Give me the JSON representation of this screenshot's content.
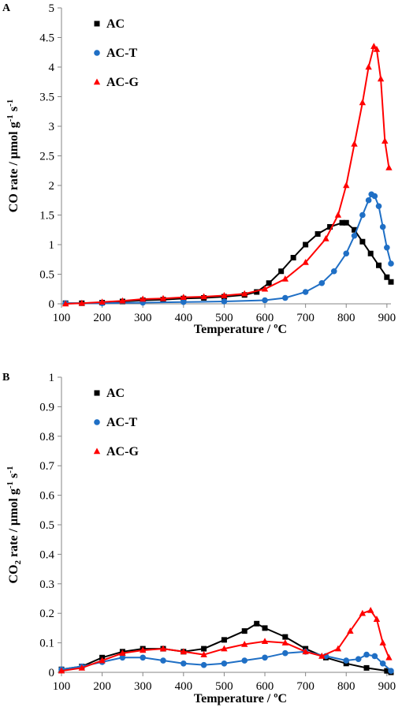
{
  "colors": {
    "AC": "#000000",
    "AC-T": "#1f6fc5",
    "AC-G": "#ff0000"
  },
  "chart_data": [
    {
      "panel": "A",
      "type": "line",
      "ylabel_main": "CO rate / μmol g",
      "ylabel_sup1": "-1",
      "ylabel_mid": " s",
      "ylabel_sup2": "-1",
      "xlabel": "Temperature / ºC",
      "xlim": [
        100,
        910
      ],
      "ylim": [
        0,
        5
      ],
      "xticks": [
        "100",
        "200",
        "300",
        "400",
        "500",
        "600",
        "700",
        "800",
        "900"
      ],
      "yticks": [
        "0",
        "0.5",
        "1",
        "1.5",
        "2",
        "2.5",
        "3",
        "3.5",
        "4",
        "4.5",
        "5"
      ],
      "legend_position": "top-left",
      "grid": false,
      "series": [
        {
          "name": "AC",
          "marker": "square",
          "points": [
            [
              110,
              0.01
            ],
            [
              150,
              0.01
            ],
            [
              200,
              0.02
            ],
            [
              250,
              0.04
            ],
            [
              300,
              0.06
            ],
            [
              350,
              0.07
            ],
            [
              400,
              0.09
            ],
            [
              450,
              0.1
            ],
            [
              500,
              0.12
            ],
            [
              550,
              0.15
            ],
            [
              580,
              0.2
            ],
            [
              610,
              0.35
            ],
            [
              640,
              0.55
            ],
            [
              670,
              0.78
            ],
            [
              700,
              1.0
            ],
            [
              730,
              1.18
            ],
            [
              760,
              1.3
            ],
            [
              790,
              1.37
            ],
            [
              800,
              1.37
            ],
            [
              820,
              1.25
            ],
            [
              840,
              1.05
            ],
            [
              860,
              0.85
            ],
            [
              880,
              0.65
            ],
            [
              900,
              0.45
            ],
            [
              910,
              0.37
            ]
          ]
        },
        {
          "name": "AC-T",
          "marker": "circle",
          "points": [
            [
              110,
              0.01
            ],
            [
              200,
              0.01
            ],
            [
              300,
              0.02
            ],
            [
              400,
              0.03
            ],
            [
              500,
              0.04
            ],
            [
              600,
              0.06
            ],
            [
              650,
              0.1
            ],
            [
              700,
              0.2
            ],
            [
              740,
              0.35
            ],
            [
              770,
              0.55
            ],
            [
              800,
              0.85
            ],
            [
              820,
              1.15
            ],
            [
              840,
              1.5
            ],
            [
              855,
              1.75
            ],
            [
              862,
              1.85
            ],
            [
              870,
              1.82
            ],
            [
              880,
              1.65
            ],
            [
              890,
              1.3
            ],
            [
              900,
              0.95
            ],
            [
              910,
              0.68
            ]
          ]
        },
        {
          "name": "AC-G",
          "marker": "triangle",
          "points": [
            [
              110,
              0.0
            ],
            [
              150,
              0.01
            ],
            [
              200,
              0.03
            ],
            [
              250,
              0.05
            ],
            [
              300,
              0.08
            ],
            [
              350,
              0.09
            ],
            [
              400,
              0.11
            ],
            [
              450,
              0.12
            ],
            [
              500,
              0.14
            ],
            [
              550,
              0.17
            ],
            [
              600,
              0.25
            ],
            [
              650,
              0.42
            ],
            [
              700,
              0.7
            ],
            [
              750,
              1.1
            ],
            [
              780,
              1.5
            ],
            [
              800,
              2.0
            ],
            [
              820,
              2.7
            ],
            [
              840,
              3.4
            ],
            [
              855,
              4.0
            ],
            [
              868,
              4.35
            ],
            [
              875,
              4.3
            ],
            [
              885,
              3.8
            ],
            [
              895,
              2.75
            ],
            [
              905,
              2.3
            ]
          ]
        }
      ]
    },
    {
      "panel": "B",
      "type": "line",
      "ylabel_main": "CO",
      "ylabel_sub": "2",
      "ylabel_rest": " rate / μmol g",
      "ylabel_sup1": "-1",
      "ylabel_mid": " s",
      "ylabel_sup2": "-1",
      "xlabel": "Temperature / ºC",
      "xlim": [
        100,
        910
      ],
      "ylim": [
        0,
        1
      ],
      "xticks": [
        "100",
        "200",
        "300",
        "400",
        "500",
        "600",
        "700",
        "800",
        "900"
      ],
      "yticks": [
        "0",
        "0.1",
        "0.2",
        "0.3",
        "0.4",
        "0.5",
        "0.6",
        "0.7",
        "0.8",
        "0.9",
        "1"
      ],
      "legend_position": "top-left",
      "grid": false,
      "series": [
        {
          "name": "AC",
          "marker": "square",
          "points": [
            [
              100,
              0.01
            ],
            [
              150,
              0.02
            ],
            [
              200,
              0.05
            ],
            [
              250,
              0.07
            ],
            [
              300,
              0.08
            ],
            [
              350,
              0.08
            ],
            [
              400,
              0.07
            ],
            [
              450,
              0.08
            ],
            [
              500,
              0.11
            ],
            [
              550,
              0.14
            ],
            [
              580,
              0.165
            ],
            [
              600,
              0.15
            ],
            [
              650,
              0.12
            ],
            [
              700,
              0.08
            ],
            [
              750,
              0.05
            ],
            [
              800,
              0.03
            ],
            [
              850,
              0.015
            ],
            [
              900,
              0.005
            ],
            [
              910,
              0.0
            ]
          ]
        },
        {
          "name": "AC-T",
          "marker": "circle",
          "points": [
            [
              100,
              0.01
            ],
            [
              150,
              0.02
            ],
            [
              200,
              0.035
            ],
            [
              250,
              0.05
            ],
            [
              300,
              0.05
            ],
            [
              350,
              0.04
            ],
            [
              400,
              0.03
            ],
            [
              450,
              0.025
            ],
            [
              500,
              0.03
            ],
            [
              550,
              0.04
            ],
            [
              600,
              0.05
            ],
            [
              650,
              0.065
            ],
            [
              700,
              0.07
            ],
            [
              750,
              0.055
            ],
            [
              800,
              0.04
            ],
            [
              830,
              0.045
            ],
            [
              850,
              0.06
            ],
            [
              870,
              0.055
            ],
            [
              890,
              0.03
            ],
            [
              910,
              0.005
            ]
          ]
        },
        {
          "name": "AC-G",
          "marker": "triangle",
          "points": [
            [
              100,
              0.005
            ],
            [
              150,
              0.015
            ],
            [
              200,
              0.04
            ],
            [
              250,
              0.065
            ],
            [
              300,
              0.075
            ],
            [
              350,
              0.08
            ],
            [
              400,
              0.07
            ],
            [
              450,
              0.06
            ],
            [
              500,
              0.08
            ],
            [
              550,
              0.095
            ],
            [
              600,
              0.105
            ],
            [
              650,
              0.1
            ],
            [
              700,
              0.07
            ],
            [
              740,
              0.055
            ],
            [
              780,
              0.08
            ],
            [
              810,
              0.14
            ],
            [
              840,
              0.2
            ],
            [
              860,
              0.21
            ],
            [
              875,
              0.18
            ],
            [
              890,
              0.1
            ],
            [
              905,
              0.05
            ]
          ]
        }
      ]
    }
  ]
}
